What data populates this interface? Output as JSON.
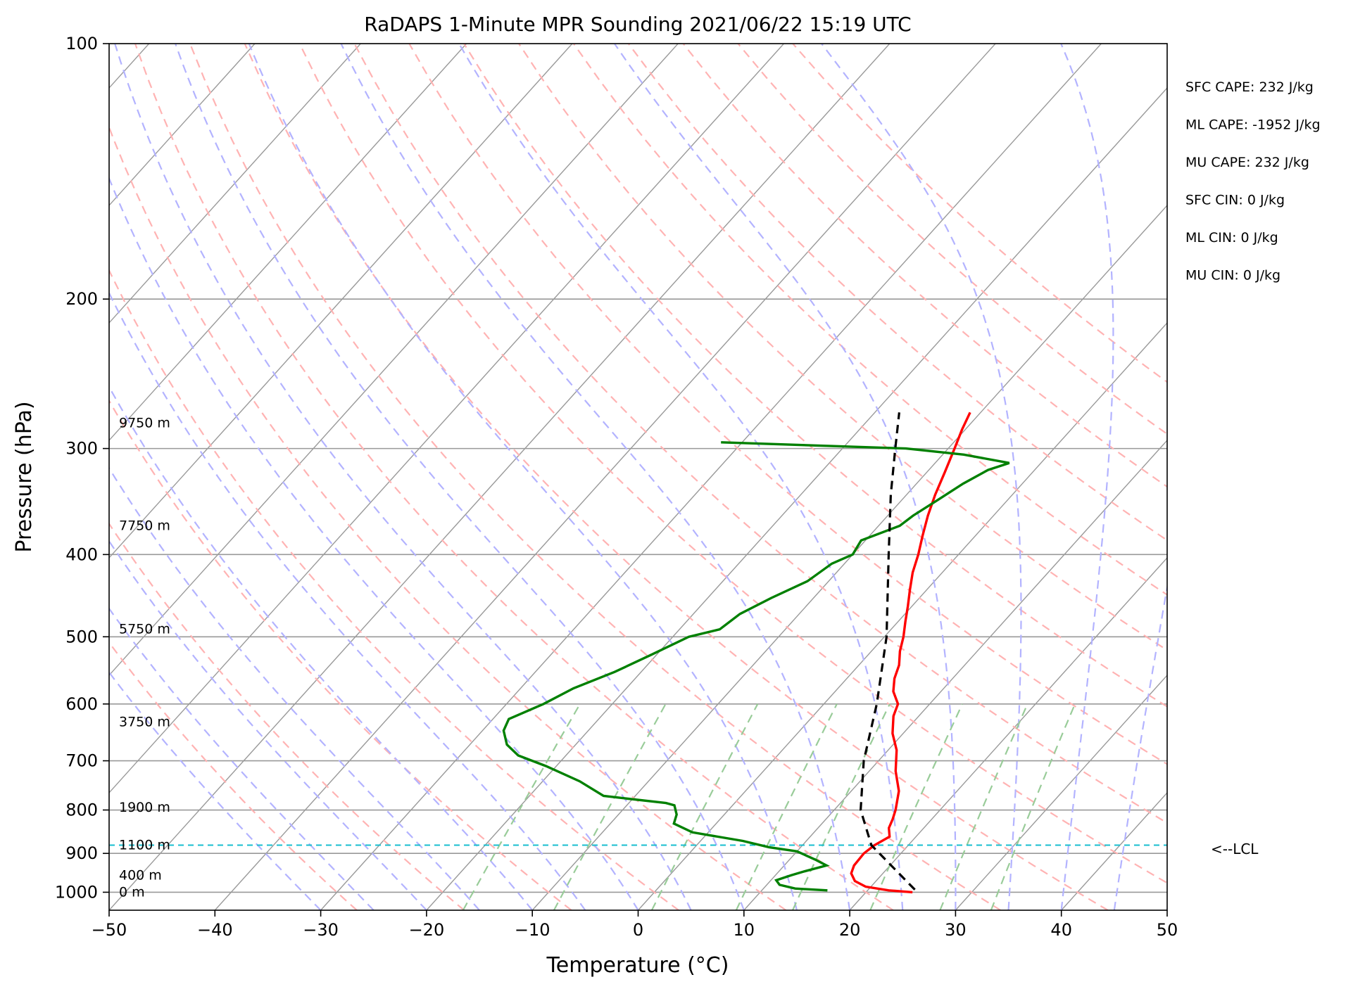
{
  "chart_data": {
    "type": "skew-t",
    "title": "RaDAPS 1-Minute MPR Sounding 2021/06/22 15:19 UTC",
    "xlabel": "Temperature (°C)",
    "ylabel": "Pressure (hPa)",
    "xlim": [
      -50,
      50
    ],
    "ylim": [
      1050,
      100
    ],
    "y_scale": "log",
    "grid": true,
    "x_ticks": [
      -50,
      -40,
      -30,
      -20,
      -10,
      0,
      10,
      20,
      30,
      40,
      50
    ],
    "x_tick_labels": [
      "−50",
      "−40",
      "−30",
      "−20",
      "−10",
      "0",
      "10",
      "20",
      "30",
      "40",
      "50"
    ],
    "y_ticks": [
      1000,
      900,
      800,
      700,
      600,
      500,
      400,
      300,
      200,
      100
    ],
    "y_tick_labels": [
      "1000",
      "900",
      "800",
      "700",
      "600",
      "500",
      "400",
      "300",
      "200",
      "100"
    ],
    "colors": {
      "temperature": "#ff0000",
      "dewpoint": "#008000",
      "parcel": "#000000",
      "lcl": "#17becf",
      "dry_adiabats": "#ffb3b3",
      "moist_adiabats": "#b3b3ff",
      "mixing_ratio": "#99cc99",
      "isotherms": "#999999"
    },
    "series": [
      {
        "key": "temperature",
        "points": [
          [
            1000,
            24.4
          ],
          [
            995,
            22.0
          ],
          [
            985,
            19.5
          ],
          [
            970,
            18.0
          ],
          [
            950,
            17.0
          ],
          [
            930,
            16.6
          ],
          [
            900,
            16.5
          ],
          [
            880,
            16.8
          ],
          [
            860,
            17.5
          ],
          [
            840,
            16.7
          ],
          [
            820,
            16.3
          ],
          [
            800,
            15.8
          ],
          [
            760,
            14.5
          ],
          [
            720,
            12.5
          ],
          [
            680,
            10.8
          ],
          [
            650,
            9.0
          ],
          [
            620,
            7.6
          ],
          [
            600,
            7.0
          ],
          [
            580,
            5.5
          ],
          [
            560,
            4.5
          ],
          [
            540,
            3.8
          ],
          [
            520,
            2.7
          ],
          [
            500,
            1.8
          ],
          [
            480,
            0.7
          ],
          [
            460,
            -0.4
          ],
          [
            440,
            -1.6
          ],
          [
            420,
            -2.8
          ],
          [
            400,
            -3.8
          ],
          [
            380,
            -5.0
          ],
          [
            360,
            -6.2
          ],
          [
            340,
            -7.3
          ],
          [
            320,
            -8.3
          ],
          [
            300,
            -9.4
          ],
          [
            285,
            -10.3
          ],
          [
            272,
            -11.0
          ]
        ]
      },
      {
        "key": "dewpoint",
        "points": [
          [
            995,
            16.2
          ],
          [
            990,
            13.0
          ],
          [
            980,
            11.2
          ],
          [
            968,
            10.5
          ],
          [
            955,
            11.5
          ],
          [
            945,
            12.4
          ],
          [
            930,
            14.0
          ],
          [
            915,
            12.4
          ],
          [
            895,
            10.0
          ],
          [
            885,
            7.0
          ],
          [
            870,
            4.0
          ],
          [
            850,
            -1.5
          ],
          [
            830,
            -4.0
          ],
          [
            810,
            -4.5
          ],
          [
            790,
            -5.5
          ],
          [
            785,
            -6.5
          ],
          [
            770,
            -13.0
          ],
          [
            740,
            -16.5
          ],
          [
            710,
            -21.0
          ],
          [
            690,
            -24.5
          ],
          [
            670,
            -26.5
          ],
          [
            645,
            -28.0
          ],
          [
            625,
            -28.5
          ],
          [
            600,
            -26.5
          ],
          [
            575,
            -25.0
          ],
          [
            550,
            -22.5
          ],
          [
            525,
            -20.5
          ],
          [
            500,
            -18.5
          ],
          [
            490,
            -16.2
          ],
          [
            470,
            -15.6
          ],
          [
            450,
            -14.0
          ],
          [
            430,
            -12.0
          ],
          [
            410,
            -11.2
          ],
          [
            400,
            -10.0
          ],
          [
            385,
            -10.4
          ],
          [
            370,
            -8.0
          ],
          [
            360,
            -7.6
          ],
          [
            345,
            -6.6
          ],
          [
            330,
            -5.6
          ],
          [
            318,
            -4.4
          ],
          [
            312,
            -3.0
          ],
          [
            305,
            -8.0
          ],
          [
            300,
            -14.0
          ],
          [
            295,
            -32.0
          ]
        ]
      },
      {
        "key": "parcel",
        "points": [
          [
            993,
            24.4
          ],
          [
            880,
            16.5
          ],
          [
            800,
            12.5
          ],
          [
            700,
            8.6
          ],
          [
            600,
            5.0
          ],
          [
            500,
            0.2
          ],
          [
            400,
            -6.6
          ],
          [
            340,
            -11.5
          ],
          [
            300,
            -15.0
          ],
          [
            272,
            -17.7
          ]
        ]
      }
    ],
    "lcl_pressure": 880,
    "lcl_label": "<--LCL",
    "height_labels": [
      {
        "pressure": 1000,
        "label": "0 m"
      },
      {
        "pressure": 955,
        "label": "400 m"
      },
      {
        "pressure": 880,
        "label": "1100 m"
      },
      {
        "pressure": 795,
        "label": "1900 m"
      },
      {
        "pressure": 630,
        "label": "3750 m"
      },
      {
        "pressure": 490,
        "label": "5750 m"
      },
      {
        "pressure": 370,
        "label": "7750 m"
      },
      {
        "pressure": 280,
        "label": "9750 m"
      }
    ],
    "annotations": [
      "SFC CAPE: 232 J/kg",
      "ML CAPE: -1952 J/kg",
      "MU CAPE: 232 J/kg",
      "SFC CIN: 0 J/kg",
      "ML CIN: 0 J/kg",
      "MU CIN: 0 J/kg"
    ]
  }
}
